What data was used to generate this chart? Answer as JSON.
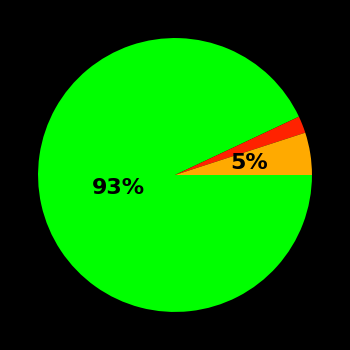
{
  "slices": [
    93,
    2,
    5
  ],
  "colors": [
    "#00ff00",
    "#ff2200",
    "#ffaa00"
  ],
  "labels": [
    "93%",
    "",
    "5%"
  ],
  "background_color": "#000000",
  "label_fontsize": 16,
  "label_fontweight": "bold",
  "startangle": 0,
  "figsize": [
    3.5,
    3.5
  ],
  "dpi": 100,
  "label_positions": {
    "0": [
      0.4,
      0.05
    ],
    "2": [
      -0.55,
      0.12
    ]
  }
}
